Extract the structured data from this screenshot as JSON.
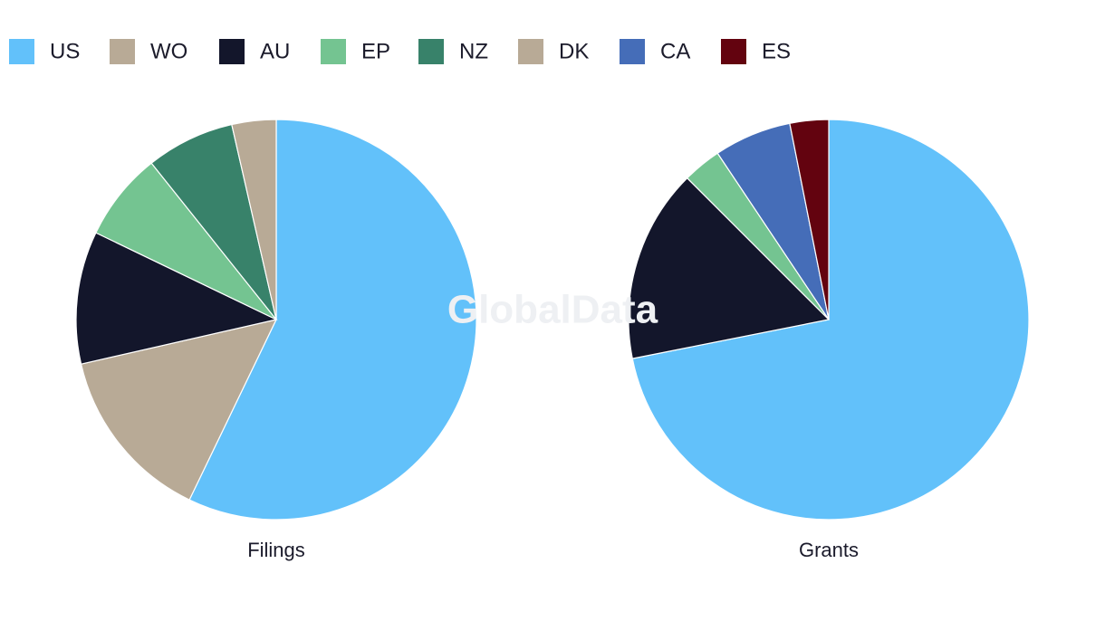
{
  "legend": [
    {
      "name": "US",
      "color": "#62c1fa"
    },
    {
      "name": "WO",
      "color": "#b8aa96"
    },
    {
      "name": "AU",
      "color": "#13162b"
    },
    {
      "name": "EP",
      "color": "#74c491"
    },
    {
      "name": "NZ",
      "color": "#38826a"
    },
    {
      "name": "DK",
      "color": "#b8aa96"
    },
    {
      "name": "CA",
      "color": "#456db8"
    },
    {
      "name": "ES",
      "color": "#63030f"
    }
  ],
  "watermark": "GlobalData",
  "chart_data": [
    {
      "type": "pie",
      "title": "Filings",
      "categories": [
        "US",
        "WO",
        "AU",
        "EP",
        "NZ",
        "DK"
      ],
      "values": [
        16,
        4,
        3,
        2,
        2,
        1
      ]
    },
    {
      "type": "pie",
      "title": "Grants",
      "categories": [
        "US",
        "AU",
        "EP",
        "CA",
        "ES"
      ],
      "values": [
        23,
        5,
        1,
        2,
        1
      ]
    }
  ]
}
